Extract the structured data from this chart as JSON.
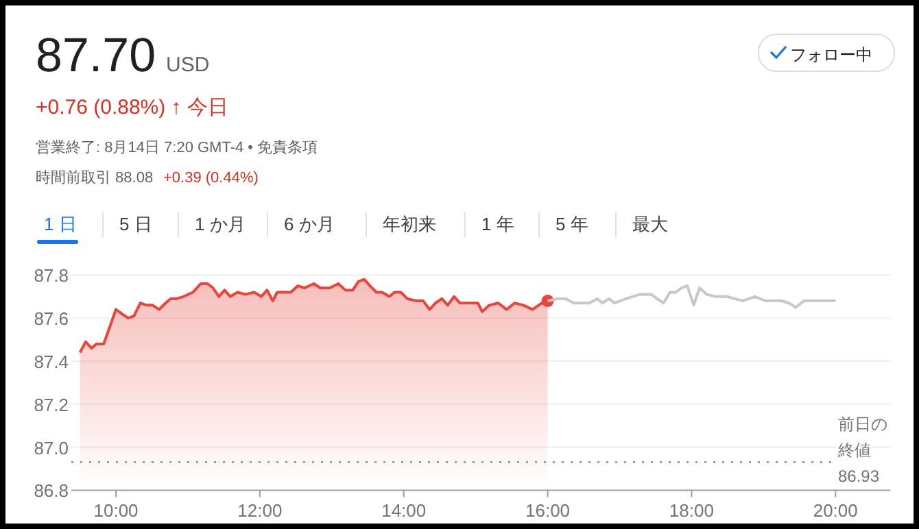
{
  "chart_data": {
    "type": "area",
    "title": "87.70",
    "subtitle": "+0.76 (0.88%) ↑ 今日",
    "annotations": [
      "USD",
      "フォロー中",
      "営業終了: 8月14日 7:20 GMT-4 • 免責条項",
      "時間前取引 88.08",
      "+0.39 (0.44%)",
      "1 日",
      "5 日",
      "1 か月",
      "6 か月",
      "年初来",
      "1 年",
      "5 年",
      "最大",
      "86.93"
    ],
    "series": [
      {
        "color": "#e8453c",
        "x": [
          9.5,
          9.58,
          9.66,
          9.73,
          9.83,
          10.0,
          10.08,
          10.17,
          10.25,
          10.34,
          10.42,
          10.51,
          10.6,
          10.69,
          10.76,
          10.84,
          10.94,
          11.07,
          11.18,
          11.27,
          11.35,
          11.43,
          11.51,
          11.59,
          11.69,
          11.8,
          11.92,
          12.02,
          12.1,
          12.18,
          12.24,
          12.34,
          12.43,
          12.53,
          12.62,
          12.75,
          12.84,
          12.97,
          13.09,
          13.19,
          13.29,
          13.37,
          13.45,
          13.53,
          13.62,
          13.7,
          13.8,
          13.87,
          13.96,
          14.05,
          14.18,
          14.27,
          14.36,
          14.44,
          14.53,
          14.61,
          14.7,
          14.78,
          14.91,
          15.03,
          15.09,
          15.19,
          15.31,
          15.43,
          15.54,
          15.66,
          15.79,
          15.92,
          16.0
        ],
        "values": [
          87.44,
          87.49,
          87.46,
          87.48,
          87.48,
          87.64,
          87.62,
          87.6,
          87.61,
          87.67,
          87.66,
          87.66,
          87.64,
          87.67,
          87.69,
          87.69,
          87.7,
          87.72,
          87.76,
          87.76,
          87.74,
          87.7,
          87.73,
          87.7,
          87.72,
          87.71,
          87.72,
          87.7,
          87.73,
          87.68,
          87.72,
          87.72,
          87.72,
          87.75,
          87.74,
          87.76,
          87.74,
          87.74,
          87.76,
          87.73,
          87.73,
          87.77,
          87.78,
          87.75,
          87.72,
          87.72,
          87.7,
          87.72,
          87.72,
          87.69,
          87.68,
          87.68,
          87.64,
          87.67,
          87.69,
          87.66,
          87.7,
          87.67,
          87.67,
          87.67,
          87.63,
          87.66,
          87.67,
          87.64,
          87.67,
          87.66,
          87.64,
          87.67,
          87.68
        ]
      },
      {
        "type": "scatter",
        "color": "#e8453c",
        "x": [
          16.0
        ],
        "values": [
          87.68
        ]
      },
      {
        "type": "line",
        "color": "#c8c8c8",
        "x": [
          16.0,
          16.14,
          16.25,
          16.36,
          16.58,
          16.69,
          16.76,
          16.85,
          16.93,
          17.09,
          17.28,
          17.44,
          17.52,
          17.61,
          17.7,
          17.78,
          17.86,
          17.94,
          18.03,
          18.11,
          18.21,
          18.33,
          18.49,
          18.71,
          18.88,
          19.03,
          19.14,
          19.25,
          19.35,
          19.45,
          19.56,
          19.76,
          20.0
        ],
        "values": [
          87.68,
          87.69,
          87.69,
          87.67,
          87.67,
          87.69,
          87.67,
          87.69,
          87.67,
          87.69,
          87.71,
          87.71,
          87.69,
          87.67,
          87.72,
          87.72,
          87.74,
          87.75,
          87.66,
          87.74,
          87.71,
          87.7,
          87.7,
          87.68,
          87.7,
          87.68,
          87.68,
          87.68,
          87.67,
          87.65,
          87.68,
          87.68,
          87.68
        ]
      }
    ],
    "xlim": [
      9.38,
      20.76
    ],
    "ylim": [
      86.8,
      87.8
    ],
    "xticks": [
      {
        "value": 10,
        "label": "10:00"
      },
      {
        "value": 12,
        "label": "12:00"
      },
      {
        "value": 14,
        "label": "14:00"
      },
      {
        "value": 16,
        "label": "16:00"
      },
      {
        "value": 18,
        "label": "18:00"
      },
      {
        "value": 20,
        "label": "20:00"
      }
    ],
    "yticks": [
      {
        "value": 86.8,
        "label": "86.8"
      },
      {
        "value": 87.0,
        "label": "87.0"
      },
      {
        "value": 87.2,
        "label": "87.2"
      },
      {
        "value": 87.4,
        "label": "87.4"
      },
      {
        "value": 87.6,
        "label": "87.6"
      },
      {
        "value": 87.8,
        "label": "87.8"
      }
    ],
    "grid": "y",
    "line_style": "solid",
    "ref_lines": [
      {
        "axis": "y",
        "value": 86.93,
        "label": "前日の終値",
        "color": "#9e9e9e",
        "line_style": "dotted"
      }
    ]
  }
}
